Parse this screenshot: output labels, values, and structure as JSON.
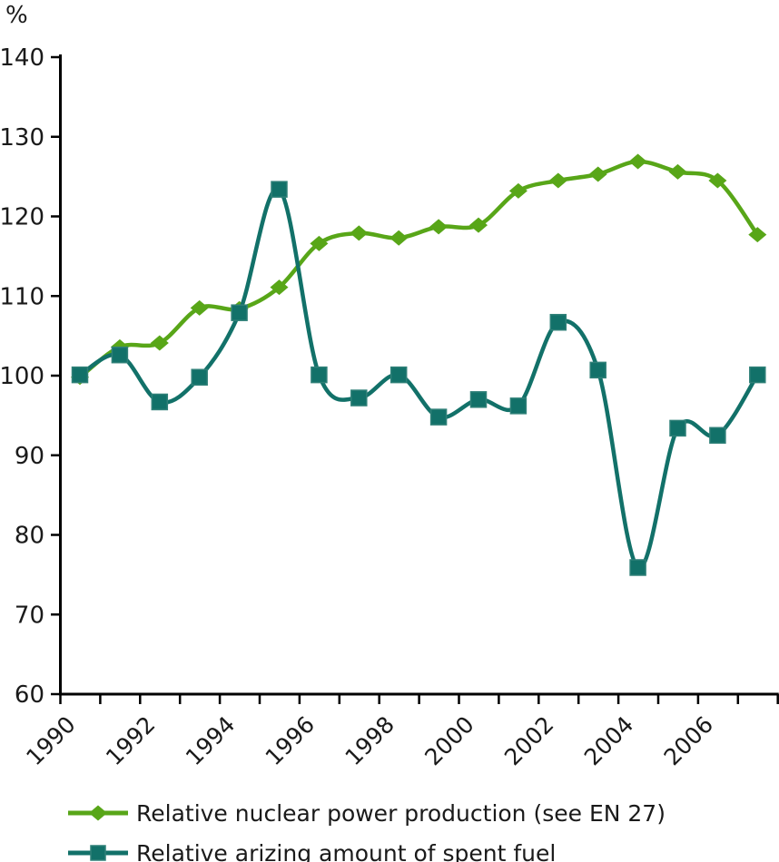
{
  "chart_data": {
    "type": "line",
    "title": "",
    "ylabel": "%",
    "xlabel": "",
    "x": [
      1990,
      1991,
      1992,
      1993,
      1994,
      1995,
      1996,
      1997,
      1998,
      1999,
      2000,
      2001,
      2002,
      2003,
      2004,
      2005,
      2006,
      2007
    ],
    "x_ticks": [
      1990,
      1991,
      1992,
      1993,
      1994,
      1995,
      1996,
      1997,
      1998,
      1999,
      2000,
      2001,
      2002,
      2003,
      2004,
      2005,
      2006,
      2007,
      2008
    ],
    "x_tick_labels": [
      "1990",
      "1992",
      "1994",
      "1996",
      "1998",
      "2000",
      "2002",
      "2004",
      "2006"
    ],
    "ylim": [
      60,
      140
    ],
    "yticks": [
      60,
      70,
      80,
      90,
      100,
      110,
      120,
      130,
      140
    ],
    "grid": false,
    "legend_position": "bottom-left",
    "axis_color": "#000000",
    "text_color": "#1a1a1a",
    "series": [
      {
        "name": "Relative nuclear power production (see EN 27)",
        "marker": "diamond",
        "color": "#58a618",
        "values": [
          99.8,
          103.6,
          104.1,
          108.5,
          108.4,
          111.1,
          116.6,
          117.9,
          117.3,
          118.7,
          118.9,
          123.2,
          124.5,
          125.3,
          126.9,
          125.6,
          124.5,
          117.7
        ]
      },
      {
        "name": "Relative arizing amount of spent fuel",
        "marker": "square",
        "color": "#127169",
        "marker_edge_color": "#2f8078",
        "values": [
          100.1,
          102.6,
          96.7,
          99.8,
          107.9,
          123.4,
          100.1,
          97.2,
          100.1,
          94.8,
          97.0,
          96.2,
          106.7,
          100.7,
          75.9,
          93.4,
          92.5,
          100.1
        ]
      }
    ]
  }
}
